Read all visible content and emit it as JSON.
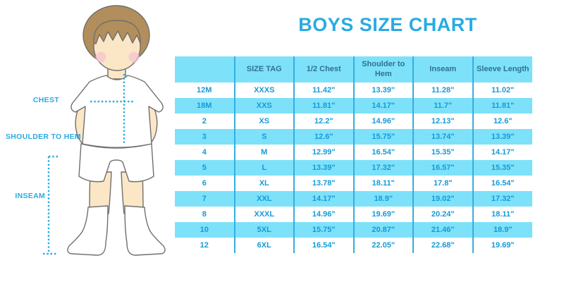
{
  "title": "BOYS SIZE CHART",
  "colors": {
    "accent": "#29ABE2",
    "table_fill": "#7EE1FA",
    "divider": "#33AFE0",
    "header_text": "#2E7194",
    "body_text": "#149BD9",
    "skin": "#FBE7C6",
    "hair": "#B28E5C",
    "blush": "#F5C3CF",
    "outline": "#6F6F6F"
  },
  "figure": {
    "chest_label": "CHEST",
    "shoulder_to_hem_label": "SHOULDER TO HEM",
    "inseam_label": "INSEAM"
  },
  "chart_data": {
    "type": "table",
    "title": "BOYS SIZE CHART",
    "columns": [
      "",
      "SIZE TAG",
      "1/2 Chest",
      "Shoulder to Hem",
      "Inseam",
      "Sleeve Length"
    ],
    "rows": [
      [
        "12M",
        "XXXS",
        "11.42\"",
        "13.39\"",
        "11.28\"",
        "11.02\""
      ],
      [
        "18M",
        "XXS",
        "11.81\"",
        "14.17\"",
        "11.7\"",
        "11.81\""
      ],
      [
        "2",
        "XS",
        "12.2\"",
        "14.96\"",
        "12.13\"",
        "12.6\""
      ],
      [
        "3",
        "S",
        "12.6\"",
        "15.75\"",
        "13.74\"",
        "13.39\""
      ],
      [
        "4",
        "M",
        "12.99\"",
        "16.54\"",
        "15.35\"",
        "14.17\""
      ],
      [
        "5",
        "L",
        "13.39\"",
        "17.32\"",
        "16.57\"",
        "15.35\""
      ],
      [
        "6",
        "XL",
        "13.78\"",
        "18.11\"",
        "17.8\"",
        "16.54\""
      ],
      [
        "7",
        "XXL",
        "14.17\"",
        "18.9\"",
        "19.02\"",
        "17.32\""
      ],
      [
        "8",
        "XXXL",
        "14.96\"",
        "19.69\"",
        "20.24\"",
        "18.11\""
      ],
      [
        "10",
        "5XL",
        "15.75\"",
        "20.87\"",
        "21.46\"",
        "18.9\""
      ],
      [
        "12",
        "6XL",
        "16.54\"",
        "22.05\"",
        "22.68\"",
        "19.69\""
      ]
    ]
  }
}
